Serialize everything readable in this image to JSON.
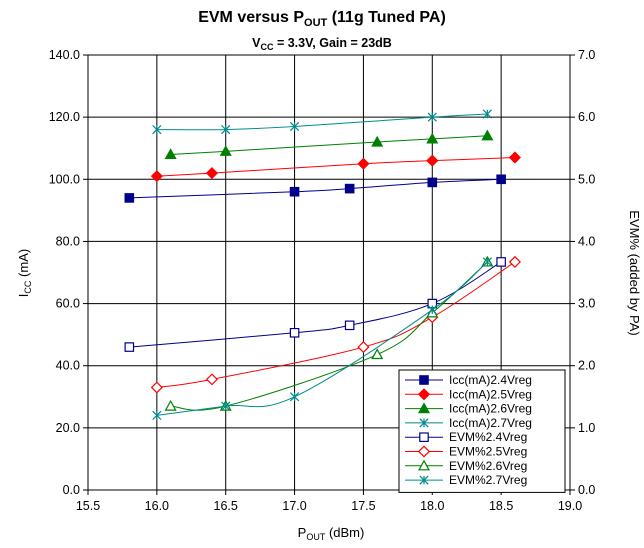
{
  "chart_data": {
    "type": "scatter",
    "title": "EVM versus P",
    "title_sub": "OUT",
    "title_tail": " (11g Tuned PA)",
    "subtitle": "V",
    "subtitle_sub": "CC",
    "subtitle_tail": " = 3.3V, Gain = 23dB",
    "xlabel": "P",
    "xlabel_sub": "OUT",
    "xlabel_tail": " (dBm)",
    "ylabel_left": "I",
    "ylabel_left_sub": "CC",
    "ylabel_left_tail": " (mA)",
    "ylabel_right": "EVM% (added by PA)",
    "xlim": [
      15.5,
      19.0
    ],
    "ylim_left": [
      0,
      140
    ],
    "ylim_right": [
      0,
      7
    ],
    "x_ticks": [
      "15.5",
      "16.0",
      "16.5",
      "17.0",
      "17.5",
      "18.0",
      "18.5",
      "19.0"
    ],
    "y_left_ticks": [
      "0.0",
      "20.0",
      "40.0",
      "60.0",
      "80.0",
      "100.0",
      "120.0",
      "140.0"
    ],
    "y_right_ticks": [
      "0.0",
      "1.0",
      "2.0",
      "3.0",
      "4.0",
      "5.0",
      "6.0",
      "7.0"
    ],
    "grid": true,
    "legend_position": "bottom-right",
    "series": [
      {
        "name": "Icc(mA)2.4Vreg",
        "axis": "left",
        "marker": "square-filled",
        "color": "#00008B",
        "x": [
          15.8,
          17.0,
          17.4,
          18.0,
          18.5
        ],
        "y": [
          94,
          96,
          97,
          99,
          100
        ]
      },
      {
        "name": "Icc(mA)2.5Vreg",
        "axis": "left",
        "marker": "diamond-filled",
        "color": "#FF0000",
        "x": [
          16.0,
          16.4,
          17.5,
          18.0,
          18.6
        ],
        "y": [
          101,
          102,
          105,
          106,
          107
        ]
      },
      {
        "name": "Icc(mA)2.6Vreg",
        "axis": "left",
        "marker": "triangle-filled",
        "color": "#008000",
        "x": [
          16.1,
          16.5,
          17.6,
          18.0,
          18.4
        ],
        "y": [
          108,
          109,
          112,
          113,
          114
        ]
      },
      {
        "name": "Icc(mA)2.7Vreg",
        "axis": "left",
        "marker": "star",
        "color": "#008B8B",
        "x": [
          16.0,
          16.5,
          17.0,
          18.0,
          18.4
        ],
        "y": [
          116,
          116,
          117,
          120,
          121
        ]
      },
      {
        "name": "EVM%2.4Vreg",
        "axis": "right",
        "marker": "square-open",
        "color": "#00008B",
        "x": [
          15.8,
          17.0,
          17.4,
          18.0,
          18.5
        ],
        "y": [
          2.3,
          2.53,
          2.65,
          3.0,
          3.67
        ]
      },
      {
        "name": "EVM%2.5Vreg",
        "axis": "right",
        "marker": "diamond-open",
        "color": "#FF0000",
        "x": [
          16.0,
          16.4,
          17.5,
          18.0,
          18.6
        ],
        "y": [
          1.65,
          1.78,
          2.3,
          2.78,
          3.67
        ]
      },
      {
        "name": "EVM%2.6Vreg",
        "axis": "right",
        "marker": "triangle-open",
        "color": "#008000",
        "x": [
          16.1,
          16.5,
          17.6,
          18.0,
          18.4
        ],
        "y": [
          1.35,
          1.35,
          2.18,
          2.85,
          3.67
        ]
      },
      {
        "name": "EVM%2.7Vreg",
        "axis": "right",
        "marker": "star",
        "color": "#008B8B",
        "x": [
          16.0,
          16.5,
          17.0,
          18.0,
          18.4
        ],
        "y": [
          1.2,
          1.35,
          1.5,
          2.9,
          3.67
        ]
      }
    ]
  }
}
